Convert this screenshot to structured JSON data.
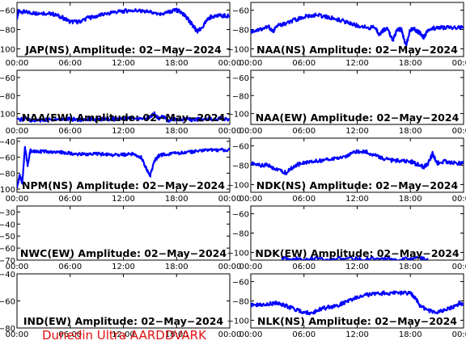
{
  "footer": "Dunedin Ultra AARDDVARK",
  "chart_data": [
    {
      "type": "line",
      "title": "JAP(NS) Amplitude: 02−May−2024",
      "yticks": [
        "−60",
        "−80",
        "−100"
      ],
      "ylim": [
        -108,
        -52
      ],
      "xticks": [
        "00:00",
        "06:00",
        "12:00",
        "18:00",
        "00:00"
      ],
      "xlim": [
        0,
        24
      ],
      "color": "#0000ff",
      "series": [
        {
          "x": [
            0,
            0.2,
            1,
            2,
            3,
            4,
            5,
            6,
            7,
            8,
            9,
            10,
            11,
            12,
            13,
            14,
            15,
            16,
            17,
            18,
            18.5,
            19,
            19.5,
            20,
            20.3,
            20.8,
            21.5,
            22,
            23,
            24
          ],
          "y": [
            -68,
            -61,
            -62,
            -63,
            -63,
            -64,
            -67,
            -72,
            -72,
            -68,
            -66,
            -64,
            -62,
            -61,
            -60,
            -61,
            -62,
            -65,
            -62,
            -60,
            -62,
            -66,
            -72,
            -78,
            -82,
            -79,
            -70,
            -66,
            -66,
            -66
          ]
        }
      ]
    },
    {
      "type": "line",
      "title": "NAA(NS) Amplitude: 02−May−2024",
      "yticks": [
        "−60",
        "−80",
        "−100"
      ],
      "ylim": [
        -108,
        -52
      ],
      "xticks": [
        "00:00",
        "06:00",
        "12:00",
        "18:00",
        "00:00"
      ],
      "xlim": [
        0,
        24
      ],
      "color": "#0000ff",
      "series": [
        {
          "x": [
            0,
            1,
            2,
            2.5,
            3,
            4,
            5,
            6,
            7,
            8,
            9,
            10,
            11,
            12,
            13,
            14,
            14.5,
            15,
            15.5,
            16,
            16.5,
            17,
            17.5,
            18,
            18.5,
            19,
            19.5,
            20,
            21,
            22,
            23,
            24
          ],
          "y": [
            -82,
            -80,
            -77,
            -82,
            -76,
            -74,
            -70,
            -67,
            -65,
            -66,
            -68,
            -70,
            -73,
            -76,
            -78,
            -78,
            -85,
            -80,
            -80,
            -92,
            -80,
            -80,
            -97,
            -80,
            -80,
            -83,
            -88,
            -80,
            -78,
            -78,
            -78,
            -78
          ]
        }
      ]
    },
    {
      "type": "line",
      "title": "NAA(EW) Amplitude: 02−May−2024",
      "yticks": [
        "−60",
        "−80",
        "−100"
      ],
      "ylim": [
        -112,
        -52
      ],
      "xticks": [
        "00:00",
        "06:00",
        "12:00",
        "18:00",
        "00:00"
      ],
      "xlim": [
        0,
        24
      ],
      "color": "#0000ff",
      "series": [
        {
          "x": [
            0,
            1,
            2,
            3,
            4,
            5,
            6,
            7,
            8,
            9,
            10,
            11,
            12,
            13,
            14,
            15,
            15.5,
            16,
            16.5,
            17,
            18,
            19,
            20,
            21,
            22,
            23,
            24
          ],
          "y": [
            -107,
            -106,
            -108,
            -107,
            -107,
            -106,
            -106,
            -107,
            -106,
            -107,
            -106,
            -106,
            -106,
            -105,
            -106,
            -104,
            -100,
            -106,
            -103,
            -108,
            -106,
            -106,
            -107,
            -106,
            -106,
            -106,
            -107
          ]
        }
      ]
    },
    {
      "type": "line",
      "title": "NAA(EW) Amplitude: 02−May−2024",
      "yticks": [
        "−60",
        "−80",
        "−100"
      ],
      "ylim": [
        -112,
        -52
      ],
      "xticks": [
        "00:00",
        "06:00",
        "12:00",
        "18:00",
        "00:00"
      ],
      "xlim": [
        0,
        24
      ],
      "color": "#0000ff",
      "series": []
    },
    {
      "type": "line",
      "title": "NPM(NS) Amplitude: 02−May−2024",
      "yticks": [
        "−40",
        "−60",
        "−80",
        "−100"
      ],
      "ylim": [
        -104,
        -36
      ],
      "xticks": [
        "00:00",
        "06:00",
        "12:00",
        "18:00",
        "00:00"
      ],
      "xlim": [
        0,
        24
      ],
      "color": "#0000ff",
      "series": [
        {
          "x": [
            0,
            0.3,
            0.6,
            0.9,
            1.2,
            1.5,
            2,
            3,
            4,
            5,
            6,
            7,
            8,
            9,
            10,
            11,
            12,
            13,
            14,
            14.5,
            15,
            15.5,
            16,
            17,
            18,
            19,
            20,
            21,
            22,
            23,
            24
          ],
          "y": [
            -100,
            -82,
            -92,
            -48,
            -70,
            -52,
            -52,
            -53,
            -54,
            -54,
            -55,
            -56,
            -56,
            -56,
            -56,
            -57,
            -57,
            -56,
            -60,
            -72,
            -84,
            -65,
            -58,
            -56,
            -55,
            -54,
            -53,
            -52,
            -51,
            -51,
            -51
          ]
        }
      ]
    },
    {
      "type": "line",
      "title": "NDK(NS) Amplitude: 02−May−2024",
      "yticks": [
        "−60",
        "−80",
        "−100"
      ],
      "ylim": [
        -108,
        -52
      ],
      "xticks": [
        "00:00",
        "06:00",
        "12:00",
        "18:00",
        "00:00"
      ],
      "xlim": [
        0,
        24
      ],
      "color": "#0000ff",
      "series": [
        {
          "x": [
            0,
            1,
            2,
            3,
            4,
            5,
            6,
            7,
            8,
            9,
            10,
            11,
            12,
            13,
            14,
            15,
            16,
            17,
            18,
            19,
            19.5,
            20,
            20.5,
            21,
            22,
            23,
            24
          ],
          "y": [
            -78,
            -80,
            -80,
            -85,
            -88,
            -80,
            -78,
            -76,
            -75,
            -74,
            -72,
            -70,
            -66,
            -66,
            -70,
            -73,
            -75,
            -76,
            -76,
            -80,
            -82,
            -78,
            -68,
            -78,
            -76,
            -78,
            -78
          ]
        }
      ]
    },
    {
      "type": "line",
      "title": "NWC(EW) Amplitude: 02−May−2024",
      "yticks": [
        "−30",
        "−40",
        "−50",
        "−60",
        "−70"
      ],
      "ylim": [
        -70,
        -25
      ],
      "xticks": [
        "00:00",
        "06:00",
        "12:00",
        "18:00",
        "00:00"
      ],
      "xlim": [
        0,
        24
      ],
      "color": "#0000ff",
      "series": []
    },
    {
      "type": "line",
      "title": "NDK(EW) Amplitude: 02−May−2024",
      "yticks": [
        "−60",
        "−80",
        "−100"
      ],
      "ylim": [
        -108,
        -52
      ],
      "xticks": [
        "00:00",
        "06:00",
        "12:00",
        "18:00",
        "00:00"
      ],
      "xlim": [
        0,
        24
      ],
      "color": "#0000ff",
      "series": [
        {
          "x": [
            3.5,
            5,
            7,
            9,
            11,
            13,
            15,
            17,
            19,
            20
          ],
          "y": [
            -106,
            -107,
            -106,
            -107,
            -106,
            -107,
            -106,
            -107,
            -106,
            -107
          ]
        }
      ]
    },
    {
      "type": "line",
      "title": "IND(EW) Amplitude: 02−May−2024",
      "yticks": [
        "−40",
        "−60",
        "−80"
      ],
      "ylim": [
        -80,
        -40
      ],
      "xticks": [
        "00:00",
        "06:00",
        "12:00",
        "18:00",
        "00:00"
      ],
      "xlim": [
        0,
        24
      ],
      "color": "#0000ff",
      "series": []
    },
    {
      "type": "line",
      "title": "NLK(NS) Amplitude: 02−May−2024",
      "yticks": [
        "−60",
        "−80",
        "−100"
      ],
      "ylim": [
        -108,
        -52
      ],
      "xticks": [
        "00:00",
        "06:00",
        "12:00",
        "18:00",
        "00:00"
      ],
      "xlim": [
        0,
        24
      ],
      "color": "#0000ff",
      "series": [
        {
          "x": [
            0,
            1,
            2,
            3,
            4,
            5,
            6,
            7,
            8,
            9,
            10,
            11,
            12,
            13,
            14,
            15,
            16,
            17,
            18,
            18.5,
            19,
            20,
            21,
            22,
            23,
            23.5,
            24
          ],
          "y": [
            -84,
            -84,
            -83,
            -82,
            -85,
            -89,
            -92,
            -92,
            -88,
            -86,
            -84,
            -80,
            -76,
            -74,
            -73,
            -72,
            -72,
            -72,
            -72,
            -76,
            -84,
            -90,
            -92,
            -89,
            -86,
            -82,
            -84
          ]
        }
      ]
    }
  ]
}
